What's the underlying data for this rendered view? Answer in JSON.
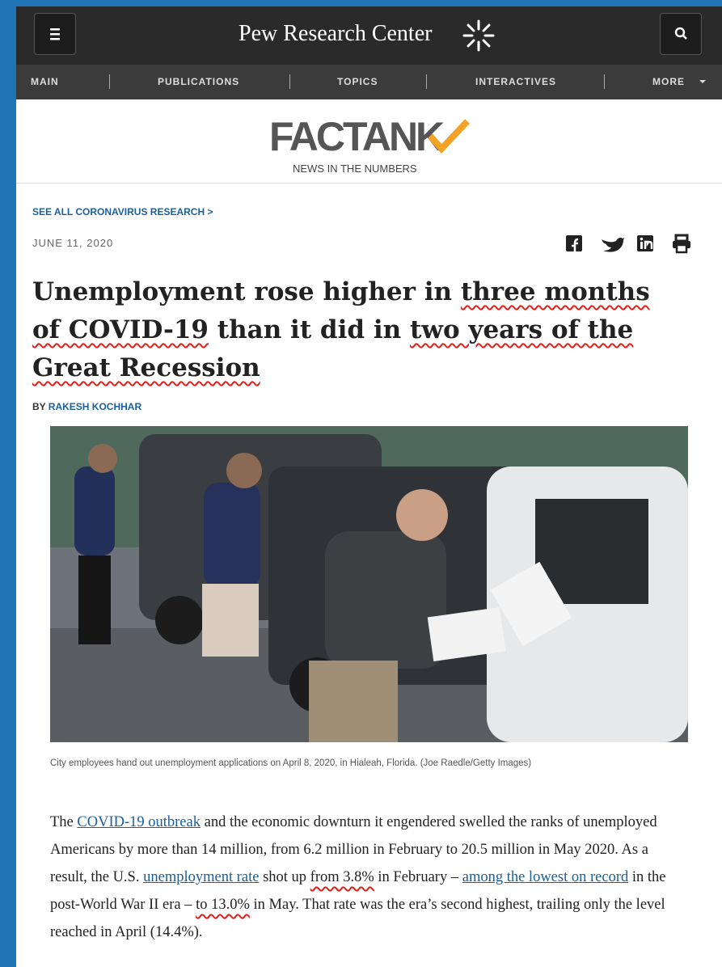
{
  "header": {
    "site": "Pew Research Center",
    "nav": [
      "MAIN",
      "PUBLICATIONS",
      "TOPICS",
      "INTERACTIVES",
      "MORE"
    ]
  },
  "masthead": {
    "logo": "FACTANK",
    "tagline": "NEWS IN THE NUMBERS"
  },
  "article": {
    "section_link": "SEE ALL CORONAVIRUS RESEARCH >",
    "date": "JUNE 11, 2020",
    "title": [
      "Unemployment rose higher in ",
      "three months of COVID-19",
      " than it did in ",
      "two years of the Great Recession"
    ],
    "byline": {
      "prefix": "BY",
      "author": "RAKESH KOCHHAR"
    },
    "caption": "City employees hand out unemployment applications on April 8, 2020, in Hialeah, Florida. (Joe Raedle/Getty Images)",
    "paragraph": [
      "The ",
      "COVID-19 outbreak",
      " and the economic downturn it engendered swelled the ranks of unemployed Americans by more than 14 million, from 6.2 million in February to 20.5 million in May 2020. As a result, the U.S. ",
      "unemployment rate",
      " shot up ",
      "from 3.8%",
      " in February – ",
      "among the lowest on record",
      " in the post-World War II era – ",
      "to 13.0%",
      " in May. That rate was the era’s second highest, trailing only the level reached in April (14.4%)."
    ]
  }
}
